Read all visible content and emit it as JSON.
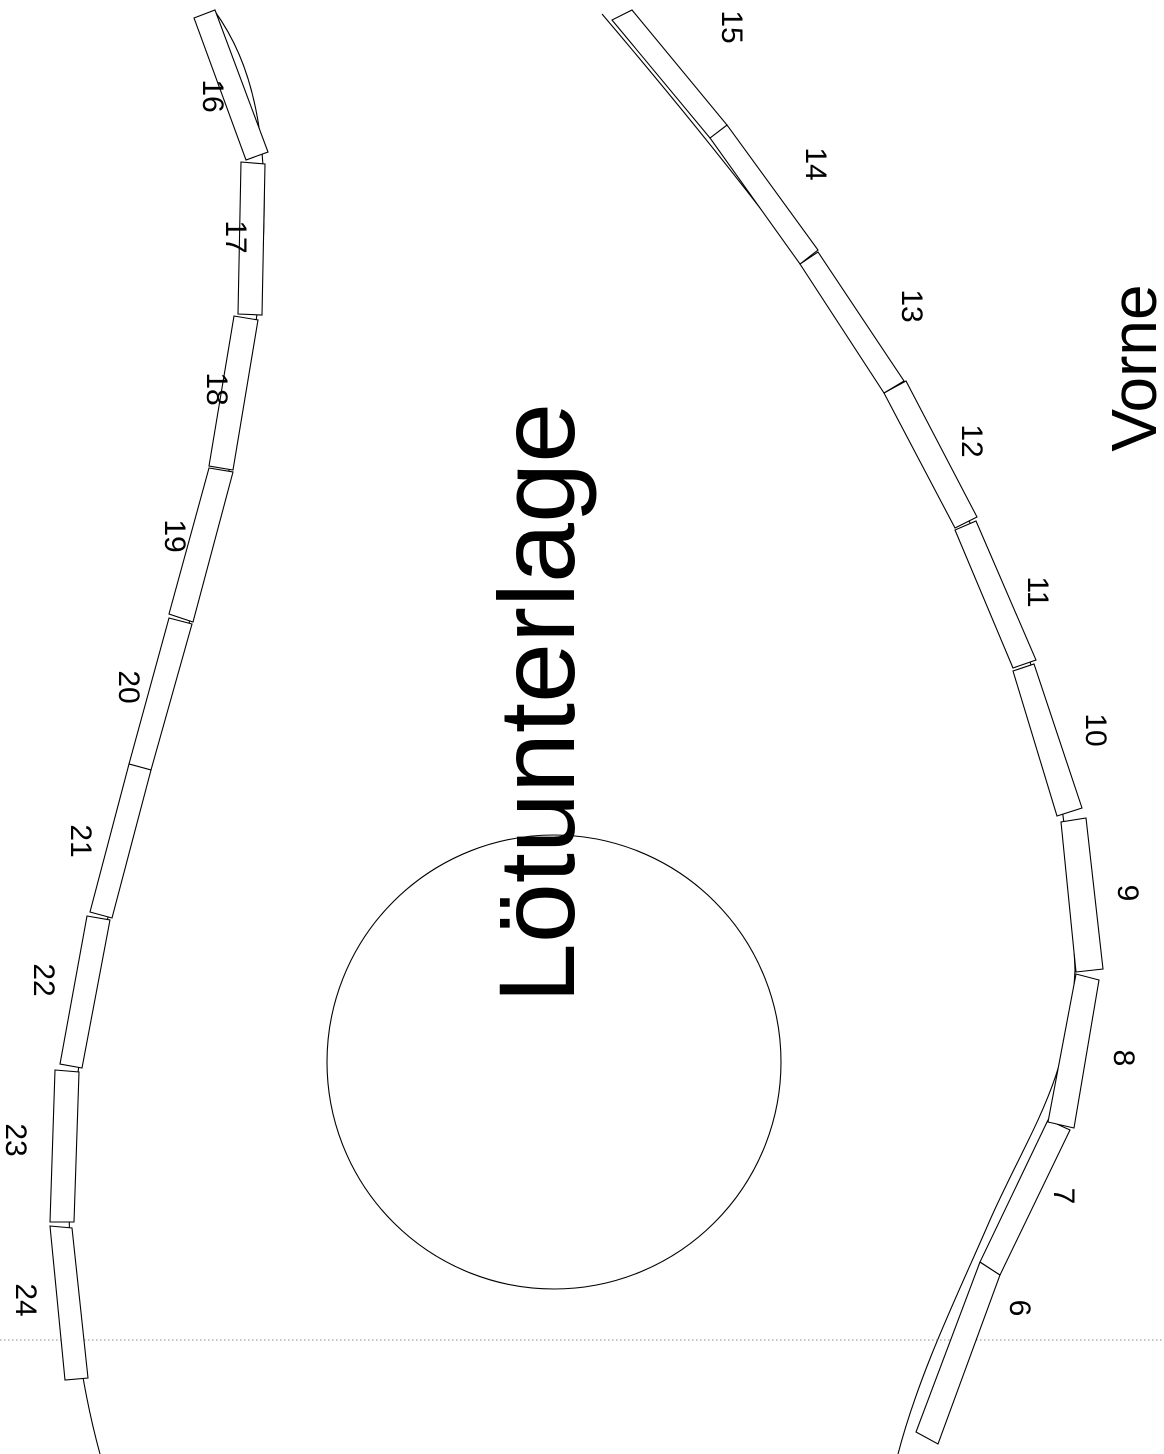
{
  "drawing": {
    "title": "Lötunterlage",
    "front_label": "Vorne",
    "line_color": "#000000",
    "background": "#ffffff",
    "segments": [
      {
        "id": "6",
        "label": "6"
      },
      {
        "id": "7",
        "label": "7"
      },
      {
        "id": "8",
        "label": "8"
      },
      {
        "id": "9",
        "label": "9"
      },
      {
        "id": "10",
        "label": "10"
      },
      {
        "id": "11",
        "label": "11"
      },
      {
        "id": "12",
        "label": "12"
      },
      {
        "id": "13",
        "label": "13"
      },
      {
        "id": "14",
        "label": "14"
      },
      {
        "id": "15",
        "label": "15"
      },
      {
        "id": "16",
        "label": "16"
      },
      {
        "id": "17",
        "label": "17"
      },
      {
        "id": "18",
        "label": "18"
      },
      {
        "id": "19",
        "label": "19"
      },
      {
        "id": "20",
        "label": "20"
      },
      {
        "id": "21",
        "label": "21"
      },
      {
        "id": "22",
        "label": "22"
      },
      {
        "id": "23",
        "label": "23"
      },
      {
        "id": "24",
        "label": "24"
      }
    ]
  }
}
